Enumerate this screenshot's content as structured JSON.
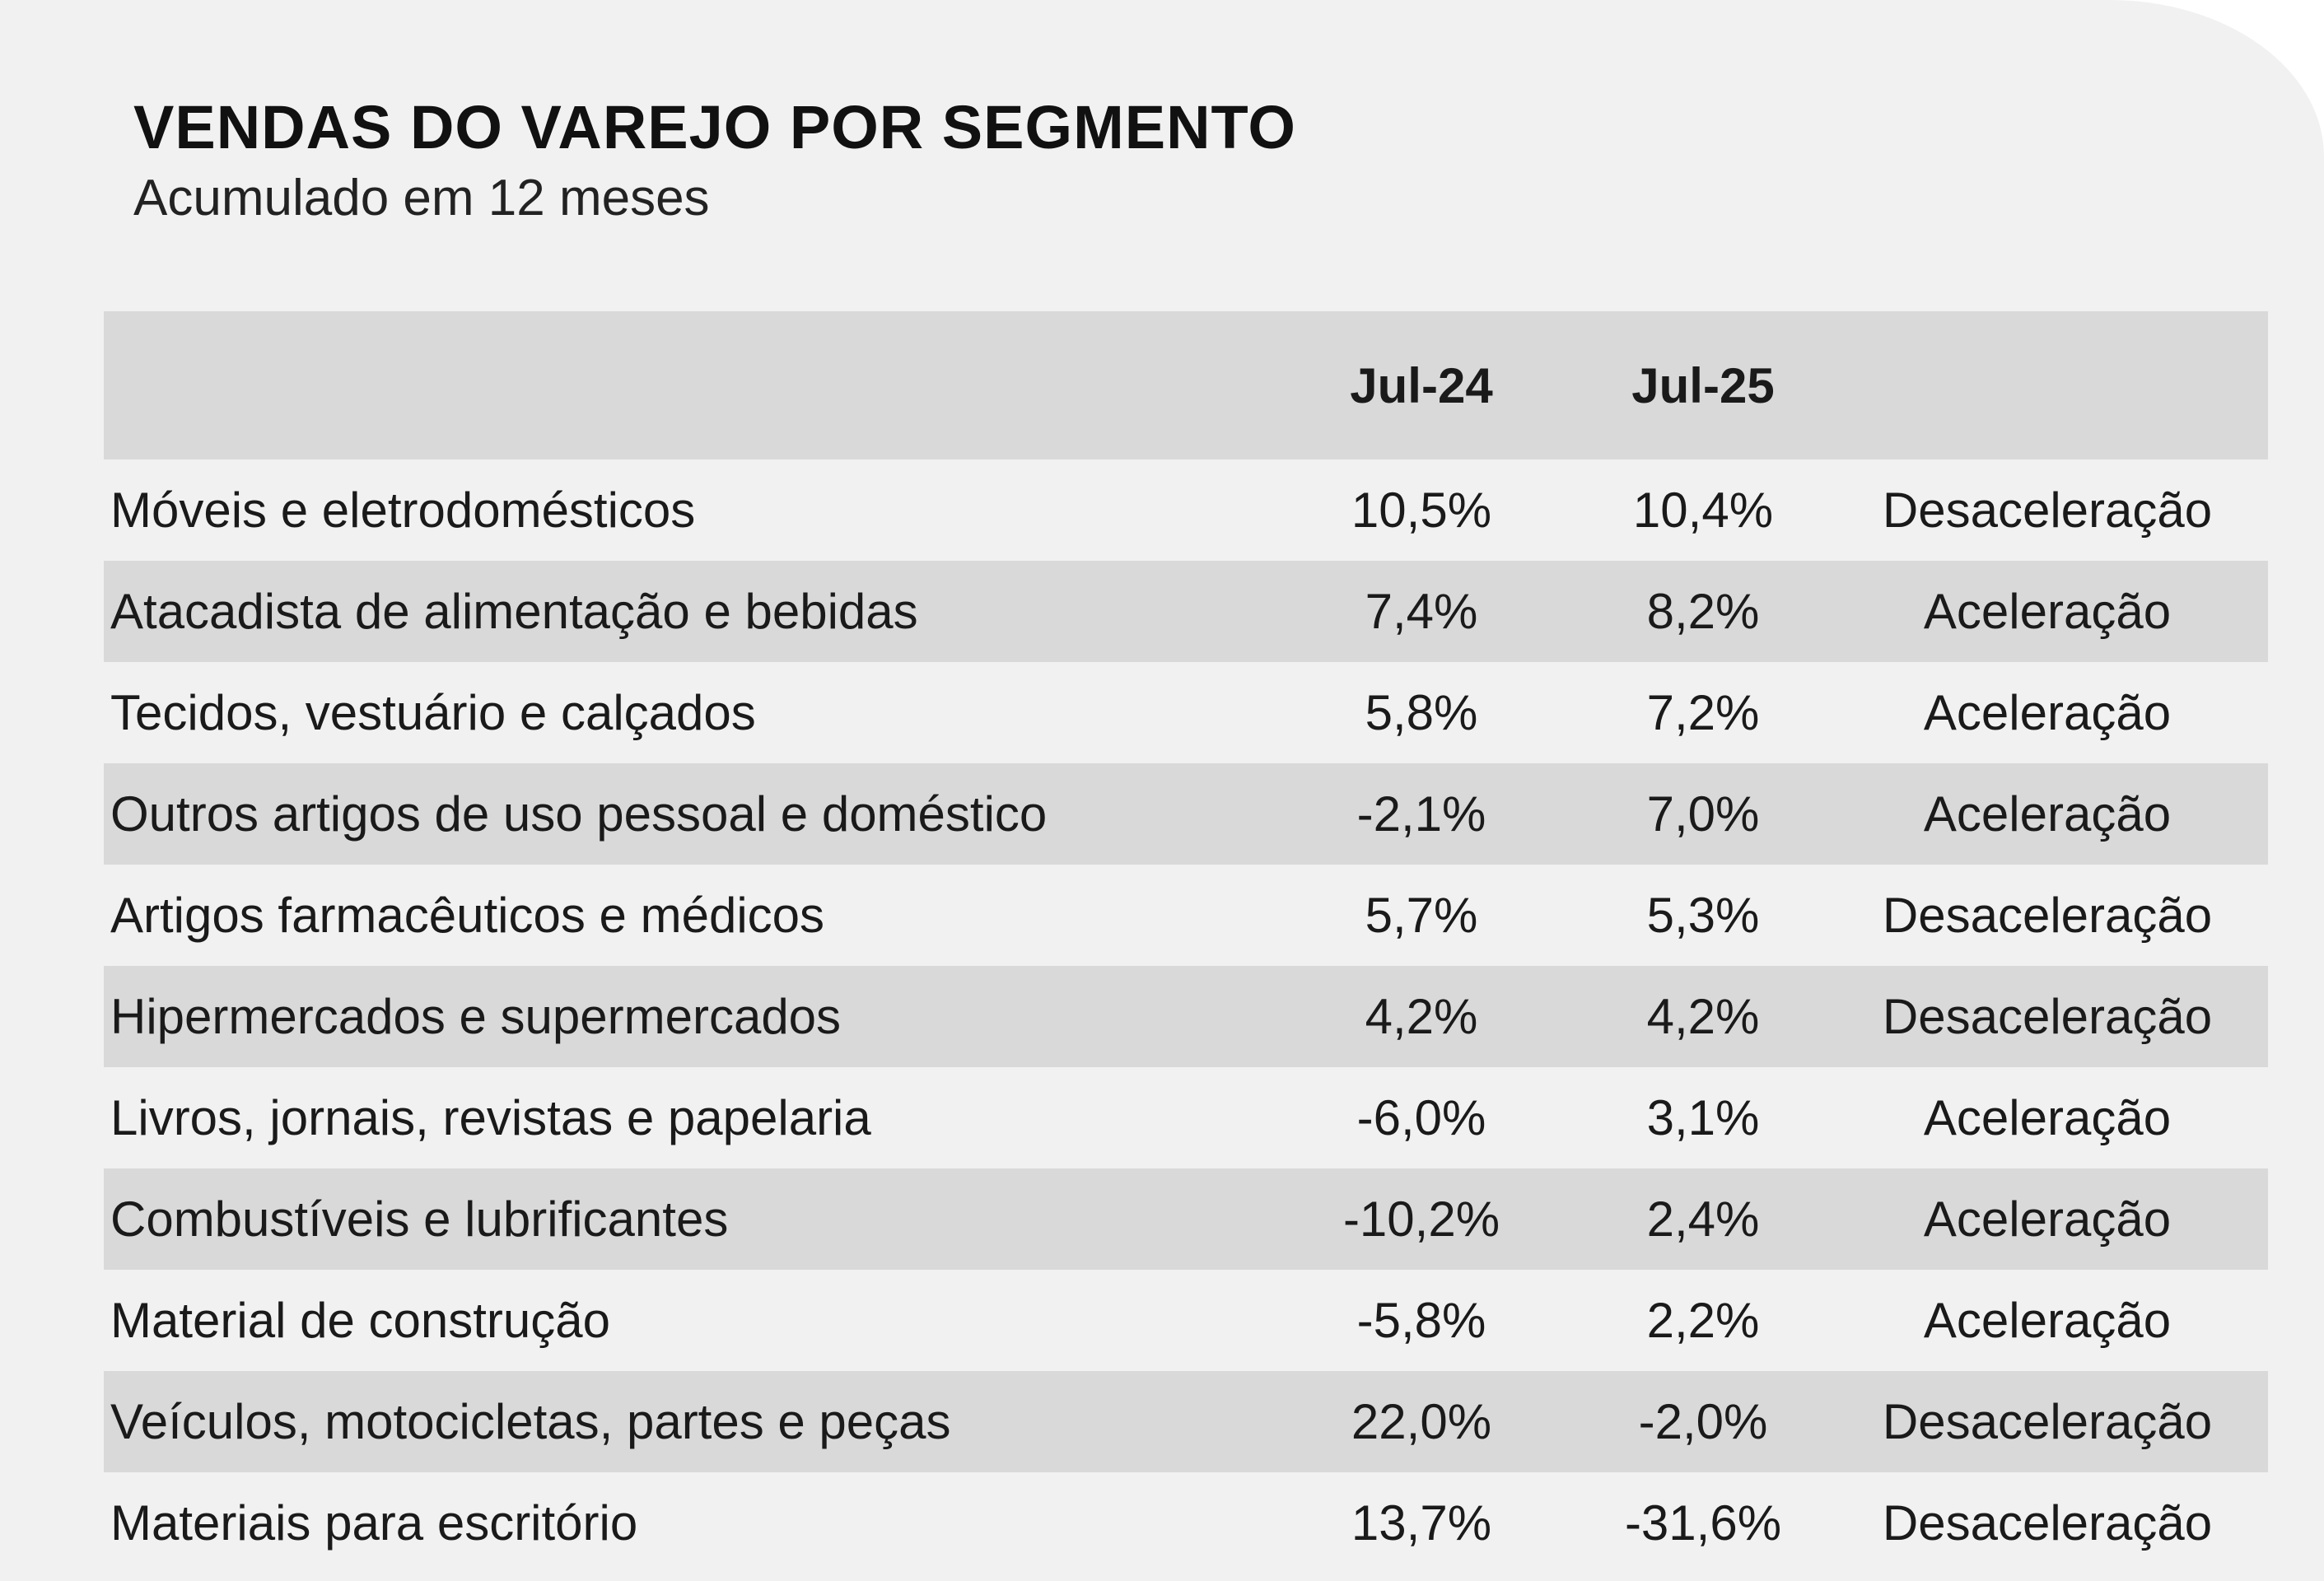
{
  "title": "VENDAS DO VAREJO POR SEGMENTO",
  "subtitle": "Acumulado em 12 meses",
  "colors": {
    "background": "#f1f1f1",
    "stripe": "#d9d9d9",
    "text": "#1a1a1a"
  },
  "table": {
    "headers": [
      "",
      "Jul-24",
      "Jul-25",
      ""
    ],
    "rows": [
      [
        "Móveis e eletrodomésticos",
        "10,5%",
        "10,4%",
        "Desaceleração"
      ],
      [
        "Atacadista de alimentação e bebidas",
        "7,4%",
        "8,2%",
        "Aceleração"
      ],
      [
        "Tecidos, vestuário e calçados",
        "5,8%",
        "7,2%",
        "Aceleração"
      ],
      [
        "Outros artigos de uso pessoal e doméstico",
        "-2,1%",
        "7,0%",
        "Aceleração"
      ],
      [
        "Artigos farmacêuticos e médicos",
        "5,7%",
        "5,3%",
        "Desaceleração"
      ],
      [
        "Hipermercados e supermercados",
        "4,2%",
        "4,2%",
        "Desaceleração"
      ],
      [
        "Livros, jornais, revistas e papelaria",
        "-6,0%",
        "3,1%",
        "Aceleração"
      ],
      [
        "Combustíveis e lubrificantes",
        "-10,2%",
        "2,4%",
        "Aceleração"
      ],
      [
        "Material de construção",
        "-5,8%",
        "2,2%",
        "Aceleração"
      ],
      [
        "Veículos, motocicletas, partes e peças",
        "22,0%",
        "-2,0%",
        "Desaceleração"
      ],
      [
        "Materiais para escritório",
        "13,7%",
        "-31,6%",
        "Desaceleração"
      ]
    ]
  }
}
